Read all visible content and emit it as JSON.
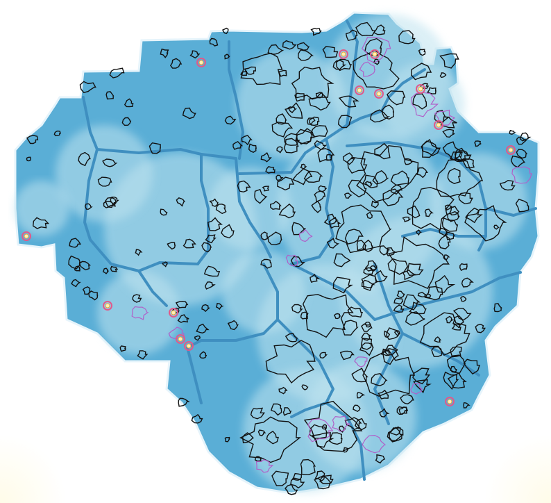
{
  "map": {
    "colors": {
      "background": "#ffffff",
      "corner_glow": "#fffbe6",
      "region_fill": "#5aaed6",
      "region_outline": "#3f8fc0",
      "region_rim": "#e6f4fb",
      "density_low": "#bfe3ef",
      "contour_low": "#111111",
      "contour_mid": "#b060c8",
      "contour_high": "#e05a8a",
      "hotspot_core": "#fff2b0"
    },
    "contour_levels": [
      "low",
      "mid",
      "high"
    ],
    "hotspot_count": 14
  }
}
